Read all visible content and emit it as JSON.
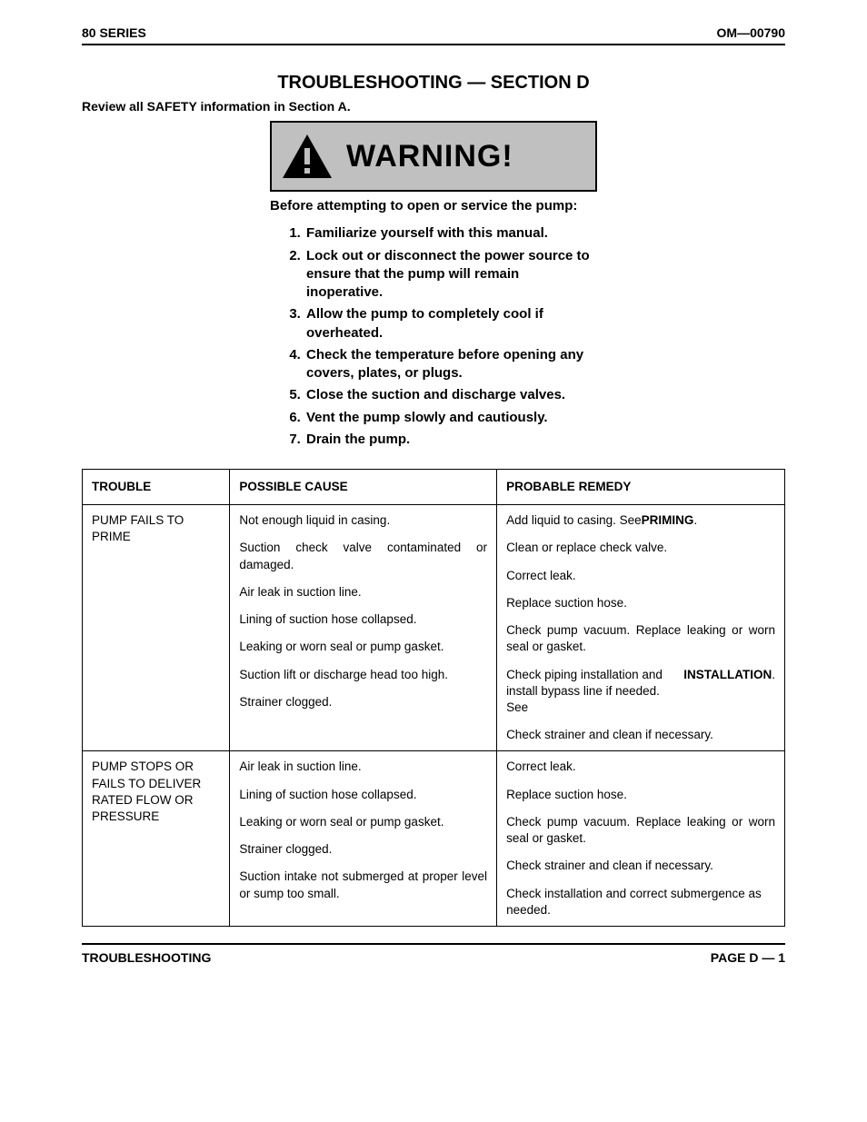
{
  "header": {
    "left": "80 SERIES",
    "right": "OM—00790"
  },
  "title": "TROUBLESHOOTING — SECTION D",
  "review_line": "Review all SAFETY information in Section A.",
  "warning": {
    "label": "WARNING!",
    "triangle_fill": "#000000",
    "bang_fill": "#c0c0c0",
    "box_bg": "#c0c0c0",
    "intro": "Before attempting to open or service the pump:",
    "items": [
      "Familiarize yourself with this manual.",
      "Lock out or disconnect the power source to ensure that the pump will remain inoperative.",
      "Allow the pump to completely cool if overheated.",
      "Check the temperature before opening any covers, plates, or plugs.",
      "Close the suction and discharge valves.",
      "Vent the pump slowly and cautiously.",
      "Drain the pump."
    ]
  },
  "table": {
    "headers": {
      "trouble": "TROUBLE",
      "cause": "POSSIBLE CAUSE",
      "remedy": "PROBABLE REMEDY"
    },
    "sections": [
      {
        "trouble": "PUMP FAILS TO PRIME",
        "rows": [
          {
            "cause": "Not enough liquid in casing.",
            "remedy_html": "Add liquid to casing. See <b>PRIMING</b>."
          },
          {
            "cause": "Suction check valve contaminated or damaged.",
            "cause_justify": true,
            "remedy_html": "Clean or replace check valve."
          },
          {
            "cause": "Air leak in suction line.",
            "remedy_html": "Correct leak."
          },
          {
            "cause": "Lining of suction hose collapsed.",
            "remedy_html": "Replace suction hose."
          },
          {
            "cause": "Leaking or worn seal or pump gasket.",
            "remedy_html": "Check pump vacuum. Replace leaking or worn seal or gasket.",
            "remedy_justify": true
          },
          {
            "cause": "Suction lift or discharge head too high.",
            "remedy_html": "Check piping installation and install bypass line if needed. See <b>INSTALLATION</b>."
          },
          {
            "cause": "Strainer clogged.",
            "remedy_html": "Check strainer and clean if necessary."
          }
        ]
      },
      {
        "trouble": "PUMP STOPS OR FAILS TO DELIVER RATED FLOW OR PRESSURE",
        "rows": [
          {
            "cause": "Air leak in suction line.",
            "remedy_html": "Correct leak."
          },
          {
            "cause": "Lining of suction hose collapsed.",
            "remedy_html": "Replace suction hose."
          },
          {
            "cause": "Leaking or worn seal or pump gasket.",
            "remedy_html": "Check pump vacuum. Replace leaking or worn seal or gasket.",
            "remedy_justify": true
          },
          {
            "cause": "Strainer clogged.",
            "remedy_html": "Check strainer and clean if necessary."
          },
          {
            "cause": "Suction intake not submerged at proper level or sump too small.",
            "cause_justify": true,
            "remedy_html": "Check installation and correct submergence as needed."
          }
        ]
      }
    ]
  },
  "footer": {
    "left": "TROUBLESHOOTING",
    "right": "PAGE D — 1"
  },
  "colors": {
    "text": "#000000",
    "background": "#ffffff",
    "rule": "#000000"
  }
}
